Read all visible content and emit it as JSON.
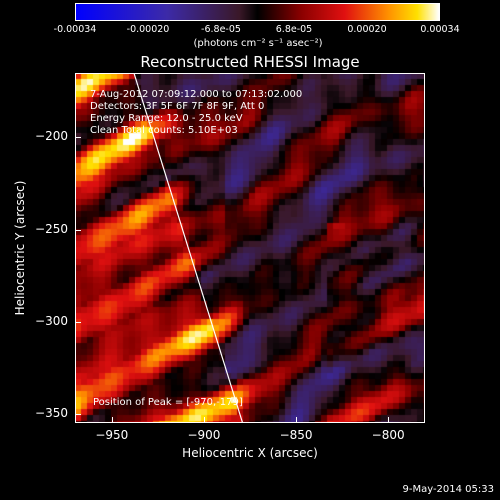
{
  "colorbar": {
    "tick_labels": [
      "-0.00034",
      "-0.00020",
      "-6.8e-05",
      "6.8e-05",
      "0.00020",
      "0.00034"
    ],
    "units_label": "(photons cm⁻² s⁻¹ asec⁻²)",
    "range": [
      -0.00034,
      0.00034
    ]
  },
  "annotations": {
    "time_range": "7-Aug-2012 07:09:12.000 to 07:13:02.000",
    "detectors": "Detectors: 3F 5F 6F 7F 8F 9F, Att 0",
    "energy": "Energy Range: 12.0 - 25.0 keV",
    "clean": "Clean    Total counts: 5.10E+03",
    "peak": "Position of Peak = [-970,-179]"
  },
  "footer": {
    "date": "9-May-2014 05:33"
  },
  "chart_data": {
    "type": "heatmap",
    "title": "Reconstructed RHESSI Image",
    "xlabel": "Heliocentric X (arcsec)",
    "ylabel": "Heliocentric Y (arcsec)",
    "xlim": [
      -970,
      -780
    ],
    "ylim": [
      -355,
      -165
    ],
    "x_ticks": [
      -950,
      -900,
      -850,
      -800
    ],
    "y_ticks": [
      -200,
      -250,
      -300,
      -350
    ],
    "x_tick_labels": [
      "−950",
      "−900",
      "−850",
      "−800"
    ],
    "y_tick_labels": [
      "−200",
      "−250",
      "−300",
      "−350"
    ],
    "limb_line": [
      [
        -938,
        -165
      ],
      [
        -879,
        -355
      ]
    ],
    "peak_position": [
      -970,
      -179
    ],
    "grid": false,
    "colorbar": "top"
  }
}
